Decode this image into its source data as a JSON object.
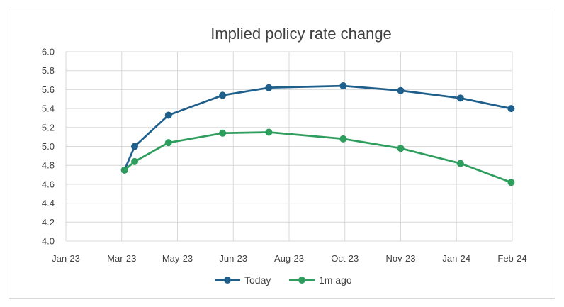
{
  "chart_data": {
    "type": "line",
    "title": "Implied policy rate change",
    "xlabel": "",
    "ylabel": "",
    "ylim": [
      4.0,
      6.0
    ],
    "yticks": [
      "4.0",
      "4.2",
      "4.4",
      "4.6",
      "4.8",
      "5.0",
      "5.2",
      "5.4",
      "5.6",
      "5.8",
      "6.0"
    ],
    "xticks": [
      "Jan-23",
      "Mar-23",
      "May-23",
      "Jun-23",
      "Aug-23",
      "Oct-23",
      "Nov-23",
      "Jan-24",
      "Feb-24"
    ],
    "grid": true,
    "legend_position": "bottom",
    "series": [
      {
        "name": "Today",
        "color": "#1f5f8b",
        "x": [
          "2023-02-22",
          "2023-03-03",
          "2023-04-02",
          "2023-05-20",
          "2023-06-30",
          "2023-09-04",
          "2023-10-25",
          "2023-12-17",
          "2024-01-31"
        ],
        "values": [
          4.75,
          5.0,
          5.33,
          5.54,
          5.62,
          5.64,
          5.59,
          5.51,
          5.4
        ]
      },
      {
        "name": "1m ago",
        "color": "#2e9e5e",
        "x": [
          "2023-02-22",
          "2023-03-03",
          "2023-04-02",
          "2023-05-20",
          "2023-06-30",
          "2023-09-04",
          "2023-10-25",
          "2023-12-17",
          "2024-01-31"
        ],
        "values": [
          4.75,
          4.84,
          5.04,
          5.14,
          5.15,
          5.08,
          4.98,
          4.82,
          4.62
        ]
      }
    ]
  }
}
